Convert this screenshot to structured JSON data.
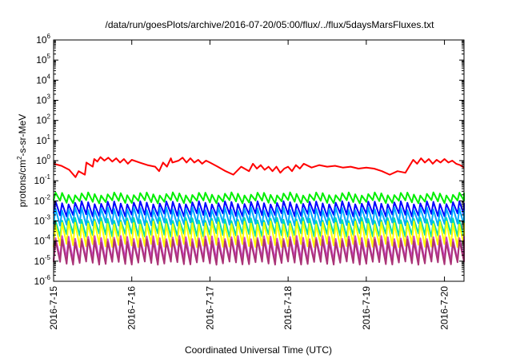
{
  "chart_data": {
    "type": "line",
    "title": "/data/run/goesPlots/archive/2016-07-20/05:00/flux/../flux/5daysMarsFluxes.txt",
    "xlabel": "Coordinated Universal Time (UTC)",
    "ylabel": {
      "prefix": "protons/cm",
      "sup": "2",
      "suffix": "-s-sr-MeV"
    },
    "y_scale": "log",
    "ylim": [
      1e-06,
      1000000.0
    ],
    "xlim_days": [
      0,
      5.25
    ],
    "x_ticks": [
      {
        "label": "2016-7-15",
        "day": 0
      },
      {
        "label": "2016-7-16",
        "day": 1
      },
      {
        "label": "2016-7-17",
        "day": 2
      },
      {
        "label": "2016-7-18",
        "day": 3
      },
      {
        "label": "2016-7-19",
        "day": 4
      },
      {
        "label": "2016-7-20",
        "day": 5
      }
    ],
    "y_ticks": [
      {
        "base": "10",
        "exp": "6",
        "value": 1000000.0
      },
      {
        "base": "10",
        "exp": "5",
        "value": 100000.0
      },
      {
        "base": "10",
        "exp": "4",
        "value": 10000.0
      },
      {
        "base": "10",
        "exp": "3",
        "value": 1000.0
      },
      {
        "base": "10",
        "exp": "2",
        "value": 100.0
      },
      {
        "base": "10",
        "exp": "1",
        "value": 10.0
      },
      {
        "base": "10",
        "exp": "0",
        "value": 1
      },
      {
        "base": "10",
        "exp": "-1",
        "value": 0.1
      },
      {
        "base": "10",
        "exp": "-2",
        "value": 0.01
      },
      {
        "base": "10",
        "exp": "-3",
        "value": 0.001
      },
      {
        "base": "10",
        "exp": "-4",
        "value": 0.0001
      },
      {
        "base": "10",
        "exp": "-5",
        "value": 1e-05
      },
      {
        "base": "10",
        "exp": "-6",
        "value": 1e-06
      }
    ],
    "grid": false,
    "legend": "none",
    "series": [
      {
        "color": "#ff0000",
        "x": [
          0,
          0.1,
          0.2,
          0.28,
          0.32,
          0.4,
          0.42,
          0.5,
          0.52,
          0.56,
          0.6,
          0.65,
          0.7,
          0.75,
          0.8,
          0.85,
          0.9,
          0.95,
          1.0,
          1.1,
          1.2,
          1.3,
          1.35,
          1.4,
          1.45,
          1.5,
          1.52,
          1.6,
          1.65,
          1.7,
          1.75,
          1.8,
          1.85,
          1.9,
          1.95,
          2.0,
          2.1,
          2.2,
          2.3,
          2.4,
          2.5,
          2.55,
          2.6,
          2.65,
          2.7,
          2.75,
          2.8,
          2.85,
          2.9,
          2.95,
          3.0,
          3.05,
          3.1,
          3.15,
          3.2,
          3.3,
          3.4,
          3.5,
          3.6,
          3.7,
          3.8,
          3.9,
          4.0,
          4.1,
          4.2,
          4.3,
          4.4,
          4.5,
          4.6,
          4.65,
          4.7,
          4.75,
          4.8,
          4.85,
          4.9,
          4.95,
          5.0,
          5.05,
          5.1,
          5.15,
          5.2,
          5.25
        ],
        "values": [
          0.7,
          0.55,
          0.35,
          0.15,
          0.3,
          0.2,
          0.8,
          0.5,
          1.2,
          0.9,
          1.5,
          1.0,
          1.4,
          0.9,
          1.3,
          0.8,
          1.2,
          0.7,
          1.1,
          0.8,
          0.6,
          0.5,
          0.3,
          0.8,
          0.5,
          1.3,
          0.8,
          1.0,
          1.4,
          0.8,
          1.3,
          0.8,
          1.1,
          0.7,
          1.0,
          0.8,
          0.5,
          0.3,
          0.2,
          0.5,
          0.3,
          0.7,
          0.4,
          0.6,
          0.35,
          0.5,
          0.3,
          0.5,
          0.25,
          0.4,
          0.5,
          0.3,
          0.6,
          0.4,
          0.7,
          0.45,
          0.6,
          0.5,
          0.55,
          0.45,
          0.5,
          0.4,
          0.45,
          0.4,
          0.3,
          0.2,
          0.3,
          0.25,
          1.1,
          0.7,
          1.3,
          0.8,
          1.2,
          0.7,
          1.1,
          0.8,
          1.2,
          0.8,
          1.0,
          0.7,
          0.6,
          0.45
        ]
      },
      {
        "color": "#00ee00",
        "peak": 0.022,
        "trough": 0.009
      },
      {
        "color": "#0000ff",
        "peak": 0.008,
        "trough": 0.002
      },
      {
        "color": "#00aaff",
        "peak": 0.004,
        "trough": 0.0007
      },
      {
        "color": "#00ddaa",
        "peak": 0.0012,
        "trough": 0.0002
      },
      {
        "color": "#ffff00",
        "peak": 0.0008,
        "trough": 6e-05
      },
      {
        "color": "#cc44cc",
        "peak": 0.00015,
        "trough": 1.2e-05
      },
      {
        "color": "#aa3377",
        "peak": 0.0001,
        "trough": 8e-06
      }
    ]
  }
}
